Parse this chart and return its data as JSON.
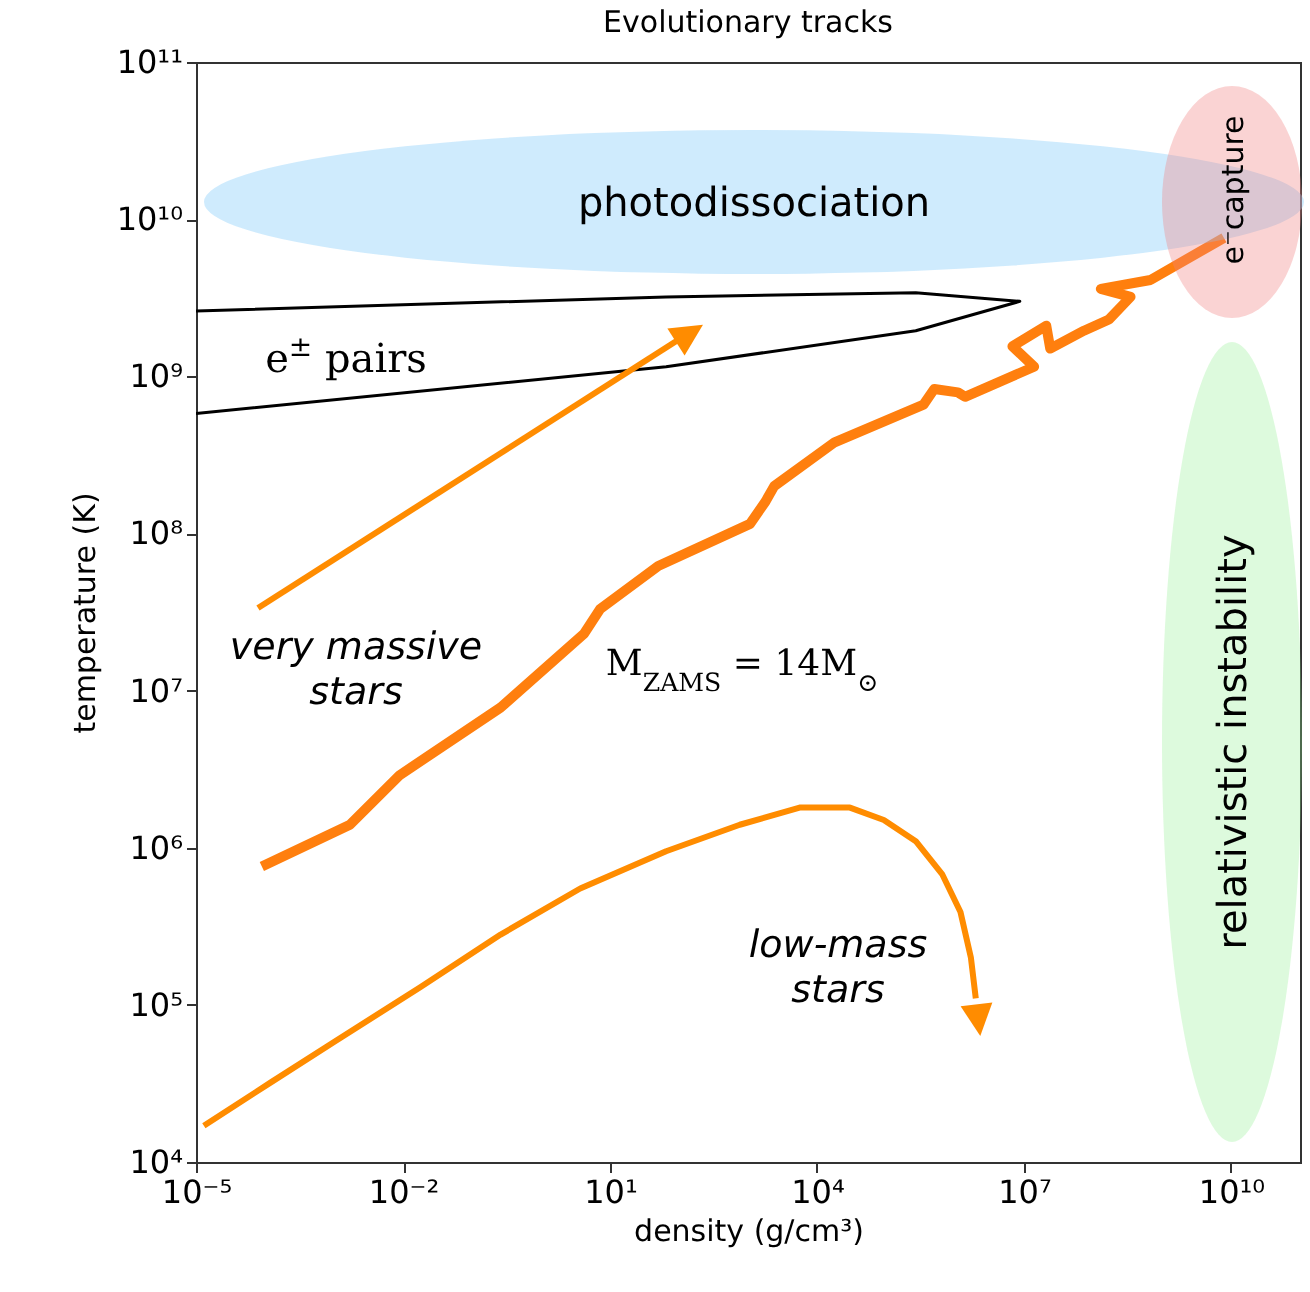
{
  "chart_data": {
    "type": "line",
    "title": "Evolutionary tracks",
    "xlabel": "density (g/cm³)",
    "ylabel": "temperature (K)",
    "log": "xy",
    "xlim": [
      1e-05,
      100000000000.0
    ],
    "ylim": [
      10000.0,
      100000000000.0
    ],
    "xticks": [
      {
        "value": 1e-05,
        "label": "10⁻⁵"
      },
      {
        "value": 0.01,
        "label": "10⁻²"
      },
      {
        "value": 10,
        "label": "10¹"
      },
      {
        "value": 10000.0,
        "label": "10⁴"
      },
      {
        "value": 10000000.0,
        "label": "10⁷"
      },
      {
        "value": 10000000000.0,
        "label": "10¹⁰"
      }
    ],
    "yticks": [
      {
        "value": 10000.0,
        "label": "10⁴"
      },
      {
        "value": 100000.0,
        "label": "10⁵"
      },
      {
        "value": 1000000.0,
        "label": "10⁶"
      },
      {
        "value": 10000000.0,
        "label": "10⁷"
      },
      {
        "value": 100000000.0,
        "label": "10⁸"
      },
      {
        "value": 1000000000.0,
        "label": "10⁹"
      },
      {
        "value": 10000000000.0,
        "label": "10¹⁰"
      },
      {
        "value": 100000000000.0,
        "label": "10¹¹"
      }
    ],
    "grid": false,
    "series": [
      {
        "color": "#ff7f0e",
        "x": [
          9e-05,
          0.0017,
          0.009,
          0.26,
          4.2,
          7.2,
          50,
          1070,
          1800,
          2400,
          18000.0,
          350000.0,
          500000.0,
          1100000.0,
          1400000.0,
          14000000.0,
          6800000.0,
          21000000.0,
          24000000.0,
          74000000.0,
          170000000.0,
          350000000.0,
          130000000.0,
          680000000.0,
          7900000000.0
        ],
        "values": [
          760000.0,
          1400000.0,
          2900000.0,
          7800000.0,
          23000000.0,
          33000000.0,
          62000000.0,
          115000000.0,
          160000000.0,
          200000000.0,
          380000000.0,
          660000000.0,
          830000000.0,
          790000000.0,
          740000000.0,
          1150000000.0,
          1550000000.0,
          2100000000.0,
          1500000000.0,
          1950000000.0,
          2300000000.0,
          3200000000.0,
          3600000000.0,
          4100000000.0,
          7600000000.0
        ]
      },
      {
        "color": "#ff8c00",
        "x": [
          1.3e-05,
          0.00012,
          0.001,
          0.018,
          0.26,
          3.7,
          65,
          760,
          5600,
          30000.0,
          93000.0,
          270000.0,
          650000.0,
          1200000.0,
          1700000.0,
          2000000.0
        ],
        "values": [
          17000.0,
          32000.0,
          58000.0,
          130000.0,
          280000.0,
          550000.0,
          950000.0,
          1400000.0,
          1800000.0,
          1800000.0,
          1500000.0,
          1100000.0,
          680000.0,
          390000.0,
          200000.0,
          110000.0
        ]
      },
      {
        "color": "#000000",
        "x": [
          1e-05,
          65,
          270000.0,
          8700000.0,
          270000.0,
          65,
          1e-05
        ],
        "values": [
          2600000000.0,
          3200000000.0,
          3400000000.0,
          3000000000.0,
          1950000000.0,
          1150000000.0,
          580000000.0
        ]
      }
    ],
    "annotations": [
      "photodissociation",
      "e⁻capture",
      "e$^{±}$ pairs",
      "very massive\nstars",
      "M$_{ZAMS}$ = 14M$_{⊙}$",
      "low-mass\nstars",
      "relativistic instability"
    ]
  }
}
